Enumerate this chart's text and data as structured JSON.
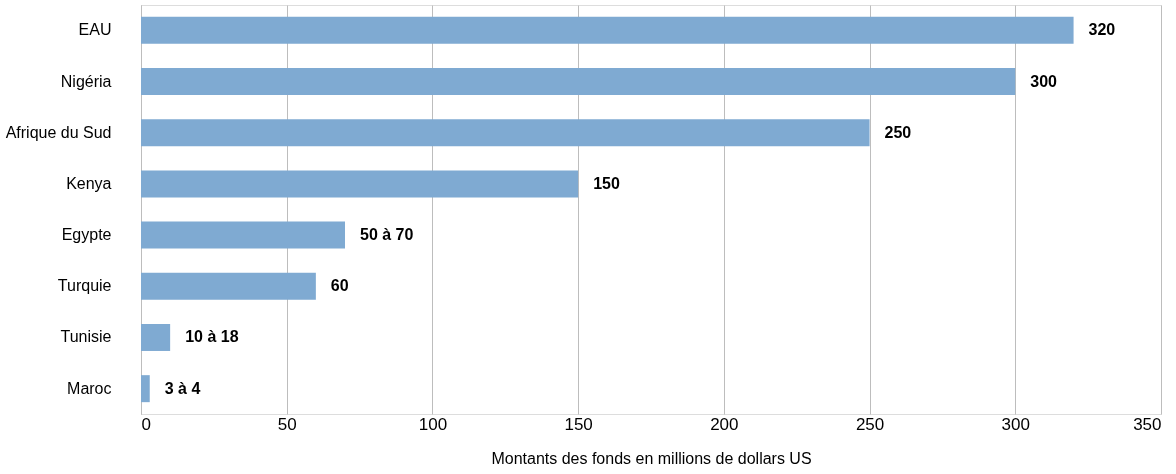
{
  "chart_data": {
    "type": "bar",
    "orientation": "horizontal",
    "xlabel": "Montants des fonds en millions de dollars US",
    "categories": [
      "EAU",
      "Nigéria",
      "Afrique du Sud",
      "Kenya",
      "Egypte",
      "Turquie",
      "Tunisie",
      "Maroc"
    ],
    "values": [
      320,
      300,
      250,
      150,
      70,
      60,
      10,
      3
    ],
    "value_labels": [
      "320",
      "300",
      "250",
      "150",
      "50 à 70",
      "60",
      "10 à 18",
      "3 à 4"
    ],
    "color": "#7faad2",
    "xlim": [
      0,
      350
    ],
    "xticks": [
      0,
      50,
      100,
      150,
      200,
      250,
      300,
      350
    ],
    "grid": "x"
  }
}
